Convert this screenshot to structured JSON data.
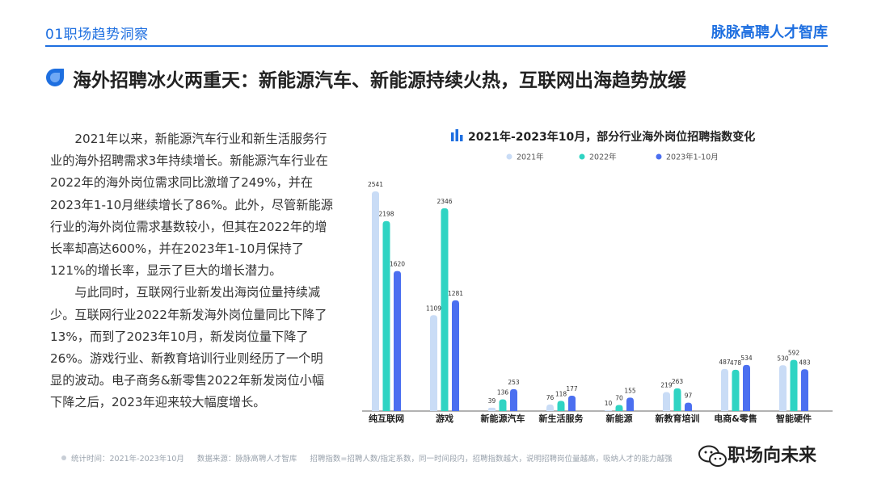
{
  "header": {
    "section_label": "01职场趋势洞察",
    "brand": "脉脉高聘人才智库"
  },
  "headline": "海外招聘冰火两重天：新能源汽车、新能源持续火热，互联网出海趋势放缓",
  "body": {
    "paragraph_1": "2021年以来，新能源汽车行业和新生活服务行业的海外招聘需求3年持续增长。新能源汽车行业在2022年的海外岗位需求同比激增了249%，并在2023年1-10月继续增长了86%。此外，尽管新能源行业的海外岗位需求基数较小，但其在2022年的增长率却高达600%，并在2023年1-10月保持了121%的增长率，显示了巨大的增长潜力。",
    "paragraph_2": "与此同时，互联网行业新发出海岗位量持续减少。互联网行业2022年新发海外岗位量同比下降了13%，而到了2023年10月，新发岗位量下降了26%。游戏行业、新教育培训行业则经历了一个明显的波动。电子商务&新零售2022年新发岗位小幅下降之后，2023年迎来较大幅度增长。"
  },
  "chart_data": {
    "type": "bar",
    "title": "2021年-2023年10月，部分行业海外岗位招聘指数变化",
    "categories": [
      "纯互联网",
      "游戏",
      "新能源汽车",
      "新生活服务",
      "新能源",
      "新教育培训",
      "电商&零售",
      "智能硬件"
    ],
    "series": [
      {
        "name": "2021年",
        "values": [
          2541,
          1109,
          39,
          76,
          10,
          219,
          487,
          530
        ]
      },
      {
        "name": "2022年",
        "values": [
          2198,
          2346,
          136,
          118,
          70,
          263,
          478,
          592
        ]
      },
      {
        "name": "2023年1-10月",
        "values": [
          1620,
          1281,
          253,
          177,
          155,
          97,
          534,
          483
        ]
      }
    ],
    "colors": [
      "#c9dcf6",
      "#2fd4c3",
      "#4b6ff0"
    ],
    "ylim": [
      0,
      2700
    ],
    "grid": false,
    "legend_position": "top",
    "data_labels": true
  },
  "footer": {
    "period": "统计时间：2021年-2023年10月",
    "source": "数据来源：脉脉高聘人才智库",
    "note": "招聘指数=招聘人数/指定系数，同一时间段内，招聘指数越大，说明招聘岗位量越高，吸纳人才的能力越强"
  },
  "watermark": {
    "icon": "wechat-icon",
    "text": "职场向未来"
  }
}
